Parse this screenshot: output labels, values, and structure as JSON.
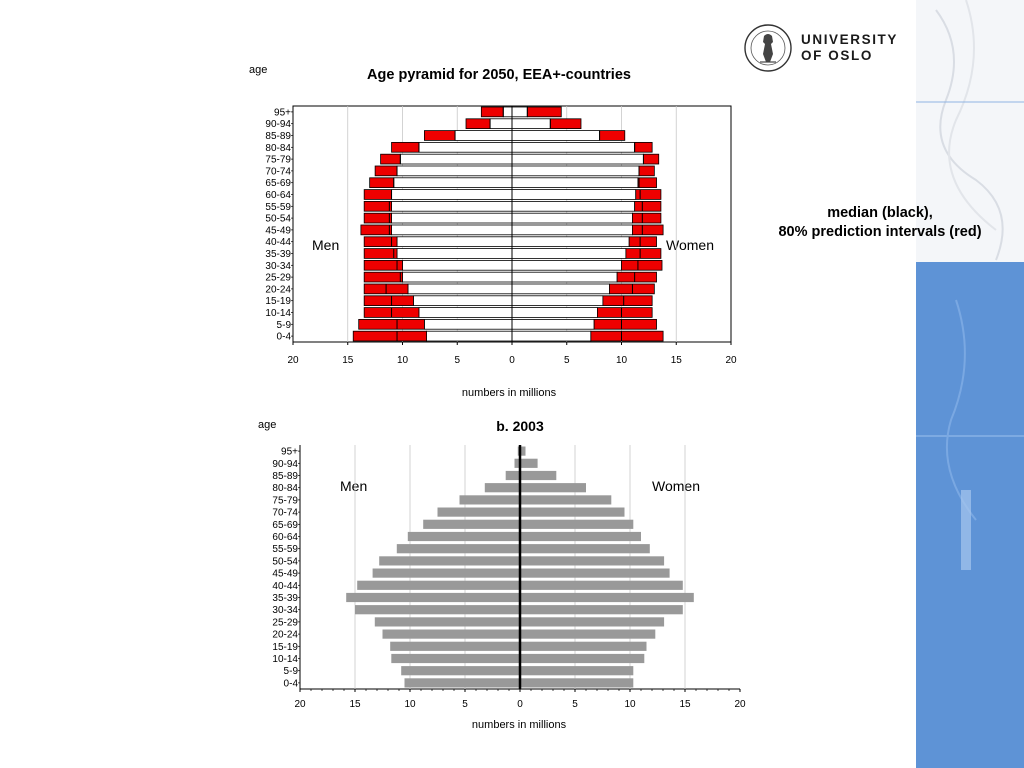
{
  "logo": {
    "line1": "UNIVERSITY",
    "line2": "OF OSLO",
    "seal_icon": "university-seal-icon"
  },
  "median_note": {
    "line1": "median (black),",
    "line2": "80% prediction intervals (red)"
  },
  "colors": {
    "interval_red": "#ee0000",
    "median_black": "#000000",
    "bar_gray": "#999999",
    "grid_gray": "#c8c8c8",
    "side_blue": "#5e93d6"
  },
  "chart_data": [
    {
      "type": "bar",
      "orientation": "horizontal-population-pyramid",
      "title": "Age pyramid for 2050, EEA+-countries",
      "ylabel": "age",
      "xlabel": "numbers in millions",
      "left_label": "Men",
      "right_label": "Women",
      "xlim": [
        -20,
        20
      ],
      "x_ticks": [
        "20",
        "15",
        "10",
        "5",
        "0",
        "5",
        "10",
        "15",
        "20"
      ],
      "categories": [
        "0-4",
        "5-9",
        "10-14",
        "15-19",
        "20-24",
        "25-29",
        "30-34",
        "35-39",
        "40-44",
        "45-49",
        "50-54",
        "55-59",
        "60-64",
        "65-69",
        "70-74",
        "75-79",
        "80-84",
        "85-89",
        "90-94",
        "95+"
      ],
      "series": [
        {
          "name": "Men",
          "median": [
            10.5,
            10.5,
            11,
            11,
            11.5,
            10.2,
            10.5,
            10.8,
            11,
            11.2,
            11.2,
            11.2,
            11,
            10.8,
            10.5,
            10.2,
            8.5,
            5.2,
            2,
            0.8
          ],
          "lower": [
            7.8,
            8,
            8.5,
            9,
            9.5,
            10,
            10,
            10.5,
            10.5,
            11,
            11,
            11,
            11,
            10.8,
            10.5,
            10.2,
            8.5,
            5.2,
            2,
            0.8
          ],
          "upper": [
            14.5,
            14,
            13.5,
            13.5,
            13.5,
            13.5,
            13.5,
            13.5,
            13.5,
            13.8,
            13.5,
            13.5,
            13.5,
            13,
            12.5,
            12,
            11,
            8,
            4.2,
            2.8
          ]
        },
        {
          "name": "Women",
          "median": [
            10,
            10,
            10,
            10.2,
            11,
            11.2,
            11.5,
            11.7,
            11.7,
            11.9,
            11.9,
            11.9,
            11.7,
            11.6,
            11.6,
            12,
            11.2,
            8,
            3.5,
            1.4
          ]
        }
      ],
      "women_lower": [
        7.2,
        7.5,
        7.8,
        8.3,
        8.9,
        9.6,
        10,
        10.4,
        10.7,
        11,
        11,
        11.2,
        11.3,
        11.5,
        11.6,
        12,
        11.2,
        8,
        3.5,
        1.4
      ],
      "women_upper": [
        13.8,
        13.2,
        12.8,
        12.8,
        13,
        13.2,
        13.7,
        13.6,
        13.2,
        13.8,
        13.6,
        13.6,
        13.6,
        13.2,
        13,
        13.4,
        12.8,
        10.3,
        6.3,
        4.5
      ]
    },
    {
      "type": "bar",
      "orientation": "horizontal-population-pyramid",
      "title": "b. 2003",
      "ylabel": "age",
      "xlabel": "numbers in millions",
      "left_label": "Men",
      "right_label": "Women",
      "xlim": [
        -20,
        20
      ],
      "x_ticks": [
        "20",
        "15",
        "10",
        "5",
        "0",
        "5",
        "10",
        "15",
        "20"
      ],
      "categories": [
        "0-4",
        "5-9",
        "10-14",
        "15-19",
        "20-24",
        "25-29",
        "30-34",
        "35-39",
        "40-44",
        "45-49",
        "50-54",
        "55-59",
        "60-64",
        "65-69",
        "70-74",
        "75-79",
        "80-84",
        "85-89",
        "90-94",
        "95+"
      ],
      "series": [
        {
          "name": "Men",
          "values": [
            10.5,
            10.8,
            11.7,
            11.8,
            12.5,
            13.2,
            15,
            15.8,
            14.8,
            13.4,
            12.8,
            11.2,
            10.2,
            8.8,
            7.5,
            5.5,
            3.2,
            1.3,
            0.5,
            0.2
          ]
        },
        {
          "name": "Women",
          "values": [
            10.3,
            10.3,
            11.3,
            11.5,
            12.3,
            13.1,
            14.8,
            15.8,
            14.8,
            13.6,
            13.1,
            11.8,
            11,
            10.3,
            9.5,
            8.3,
            6,
            3.3,
            1.6,
            0.5
          ]
        }
      ]
    }
  ]
}
